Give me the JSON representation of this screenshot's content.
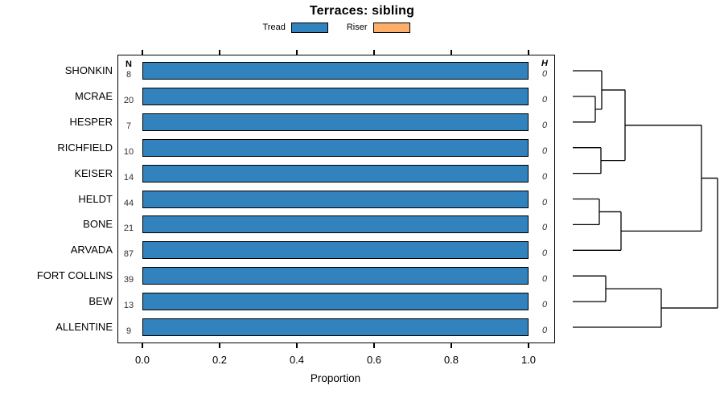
{
  "chart_data": {
    "type": "bar",
    "orientation": "horizontal",
    "title": "Terraces: sibling",
    "xlabel": "Proportion",
    "xlim": [
      0.0,
      1.0
    ],
    "x_ticks": [
      {
        "value": 0.0,
        "label": "0.0"
      },
      {
        "value": 0.2,
        "label": "0.2"
      },
      {
        "value": 0.4,
        "label": "0.4"
      },
      {
        "value": 0.6,
        "label": "0.6"
      },
      {
        "value": 0.8,
        "label": "0.8"
      },
      {
        "value": 1.0,
        "label": "1.0"
      }
    ],
    "legend": [
      {
        "label": "Tread",
        "color": "#3182BD"
      },
      {
        "label": "Riser",
        "color": "#FDAE6B"
      }
    ],
    "col_headers": {
      "n": "N",
      "h": "H"
    },
    "rows": [
      {
        "label": "SHONKIN",
        "n": 8,
        "h": 0,
        "values": {
          "Tread": 1.0,
          "Riser": 0.0
        }
      },
      {
        "label": "MCRAE",
        "n": 20,
        "h": 0,
        "values": {
          "Tread": 1.0,
          "Riser": 0.0
        }
      },
      {
        "label": "HESPER",
        "n": 7,
        "h": 0,
        "values": {
          "Tread": 1.0,
          "Riser": 0.0
        }
      },
      {
        "label": "RICHFIELD",
        "n": 10,
        "h": 0,
        "values": {
          "Tread": 1.0,
          "Riser": 0.0
        }
      },
      {
        "label": "KEISER",
        "n": 14,
        "h": 0,
        "values": {
          "Tread": 1.0,
          "Riser": 0.0
        }
      },
      {
        "label": "HELDT",
        "n": 44,
        "h": 0,
        "values": {
          "Tread": 1.0,
          "Riser": 0.0
        }
      },
      {
        "label": "BONE",
        "n": 21,
        "h": 0,
        "values": {
          "Tread": 1.0,
          "Riser": 0.0
        }
      },
      {
        "label": "ARVADA",
        "n": 87,
        "h": 0,
        "values": {
          "Tread": 1.0,
          "Riser": 0.0
        }
      },
      {
        "label": "FORT COLLINS",
        "n": 39,
        "h": 0,
        "values": {
          "Tread": 1.0,
          "Riser": 0.0
        }
      },
      {
        "label": "BEW",
        "n": 13,
        "h": 0,
        "values": {
          "Tread": 1.0,
          "Riser": 0.0
        }
      },
      {
        "label": "ALLENTINE",
        "n": 9,
        "h": 0,
        "values": {
          "Tread": 1.0,
          "Riser": 0.0
        }
      }
    ],
    "dendrogram": {
      "leaf_x": 712,
      "merges": [
        {
          "id": "m1",
          "children": [
            "MCRAE",
            "HESPER"
          ],
          "x": 740
        },
        {
          "id": "m2",
          "children": [
            "SHONKIN",
            "m1"
          ],
          "x": 748
        },
        {
          "id": "m3",
          "children": [
            "RICHFIELD",
            "KEISER"
          ],
          "x": 747
        },
        {
          "id": "m4",
          "children": [
            "m2",
            "m3"
          ],
          "x": 777
        },
        {
          "id": "m5",
          "children": [
            "HELDT",
            "BONE"
          ],
          "x": 745
        },
        {
          "id": "m6",
          "children": [
            "m5",
            "ARVADA"
          ],
          "x": 772
        },
        {
          "id": "m7",
          "children": [
            "m4",
            "m6"
          ],
          "x": 872
        },
        {
          "id": "m8",
          "children": [
            "FORT COLLINS",
            "BEW"
          ],
          "x": 753
        },
        {
          "id": "m9",
          "children": [
            "m8",
            "ALLENTINE"
          ],
          "x": 822
        },
        {
          "id": "m10",
          "children": [
            "m7",
            "m9"
          ],
          "x": 892
        }
      ]
    }
  }
}
